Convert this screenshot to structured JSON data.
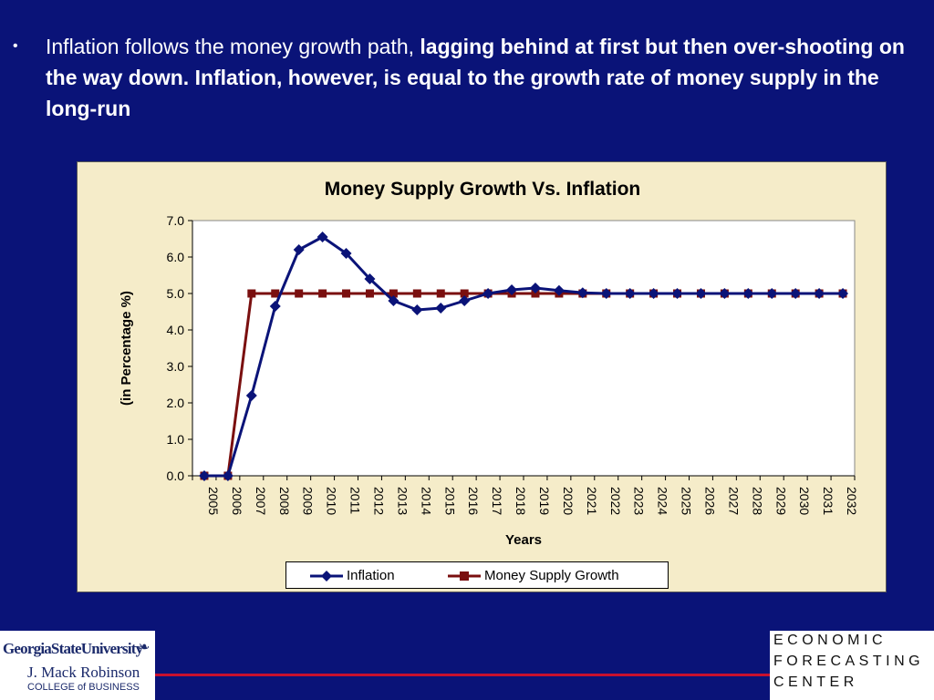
{
  "slide": {
    "bullet_symbol": "•",
    "bullet_normal": "Inflation follows the money growth path, ",
    "bullet_bold": "lagging behind at first but then over-shooting on the way down. Inflation, however, is equal to the growth rate of money supply in the long-run"
  },
  "colors": {
    "background": "#0a1378",
    "panel": "#f5ecc9",
    "inflation": "#0a1378",
    "money_supply": "#7a0f0f"
  },
  "chart_data": {
    "type": "line",
    "title": "Money Supply Growth Vs. Inflation",
    "xlabel": "Years",
    "ylabel": "(in Percentage %)",
    "ylim": [
      0,
      7
    ],
    "yticks": [
      "0.0",
      "1.0",
      "2.0",
      "3.0",
      "4.0",
      "5.0",
      "6.0",
      "7.0"
    ],
    "grid": false,
    "legend_position": "bottom",
    "categories": [
      "2005",
      "2006",
      "2007",
      "2008",
      "2009",
      "2010",
      "2011",
      "2012",
      "2013",
      "2014",
      "2015",
      "2016",
      "2017",
      "2018",
      "2019",
      "2020",
      "2021",
      "2022",
      "2023",
      "2024",
      "2025",
      "2026",
      "2027",
      "2028",
      "2029",
      "2030",
      "2031",
      "2032"
    ],
    "series": [
      {
        "name": "Inflation",
        "color": "#0a1378",
        "marker": "diamond",
        "values": [
          0.0,
          0.0,
          2.2,
          4.65,
          6.2,
          6.55,
          6.1,
          5.4,
          4.8,
          4.55,
          4.6,
          4.8,
          5.0,
          5.1,
          5.15,
          5.08,
          5.02,
          5.0,
          5.0,
          5.0,
          5.0,
          5.0,
          5.0,
          5.0,
          5.0,
          5.0,
          5.0,
          5.0
        ]
      },
      {
        "name": "Money Supply Growth",
        "color": "#7a0f0f",
        "marker": "square",
        "values": [
          0.0,
          0.0,
          5.0,
          5.0,
          5.0,
          5.0,
          5.0,
          5.0,
          5.0,
          5.0,
          5.0,
          5.0,
          5.0,
          5.0,
          5.0,
          5.0,
          5.0,
          5.0,
          5.0,
          5.0,
          5.0,
          5.0,
          5.0,
          5.0,
          5.0,
          5.0,
          5.0,
          5.0
        ]
      }
    ]
  },
  "footer": {
    "university": "GeorgiaStateUniversity",
    "school": "J. Mack Robinson",
    "college": "COLLEGE of BUSINESS",
    "center_line1": "ECONOMIC",
    "center_line2": "FORECASTING",
    "center_line3": "CENTER"
  }
}
